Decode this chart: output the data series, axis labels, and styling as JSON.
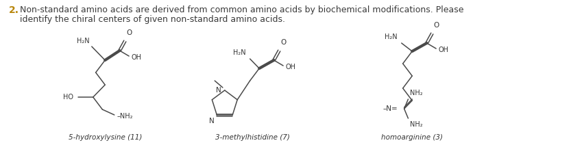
{
  "title_number": "2.",
  "title_number_color": "#B8860B",
  "title_text_line1": "Non-standard amino acids are derived from common amino acids by biochemical modifications. Please",
  "title_text_line2": "identify the chiral centers of given non-standard amino acids.",
  "title_text_color": "#3A3A3A",
  "title_fontsize": 9.0,
  "bg_color": "#FFFFFF",
  "label1": "5-hydroxylysine (11)",
  "label2": "3-methylhistidine (7)",
  "label3": "homoarginine (3)",
  "label_fontsize": 7.5,
  "label_color": "#333333",
  "bond_color": "#4A4A4A",
  "text_color": "#333333"
}
